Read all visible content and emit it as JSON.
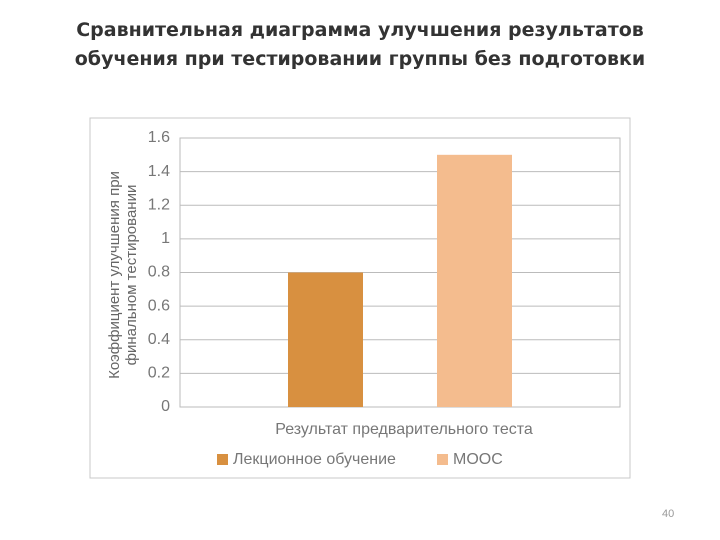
{
  "title": "Сравнительная диаграмма улучшения результатов обучения  при тестировании группы без подготовки",
  "page_number": "40",
  "chart_data": {
    "type": "bar",
    "ylabel": "Коэффициент улучшения при финальном тестировании",
    "xlabel": "Результат предварительного теста",
    "categories": [
      null
    ],
    "series": [
      {
        "name": "Лекционное обучение",
        "color": "#d89040",
        "values": [
          0.8
        ]
      },
      {
        "name": "MOOC",
        "color": "#f4bc8e",
        "values": [
          1.5
        ]
      }
    ],
    "ylim": [
      0,
      1.6
    ],
    "yticks": [
      0,
      0.2,
      0.4,
      0.6,
      0.8,
      1,
      1.2,
      1.4,
      1.6
    ],
    "grid": true,
    "legend": "bottom"
  }
}
